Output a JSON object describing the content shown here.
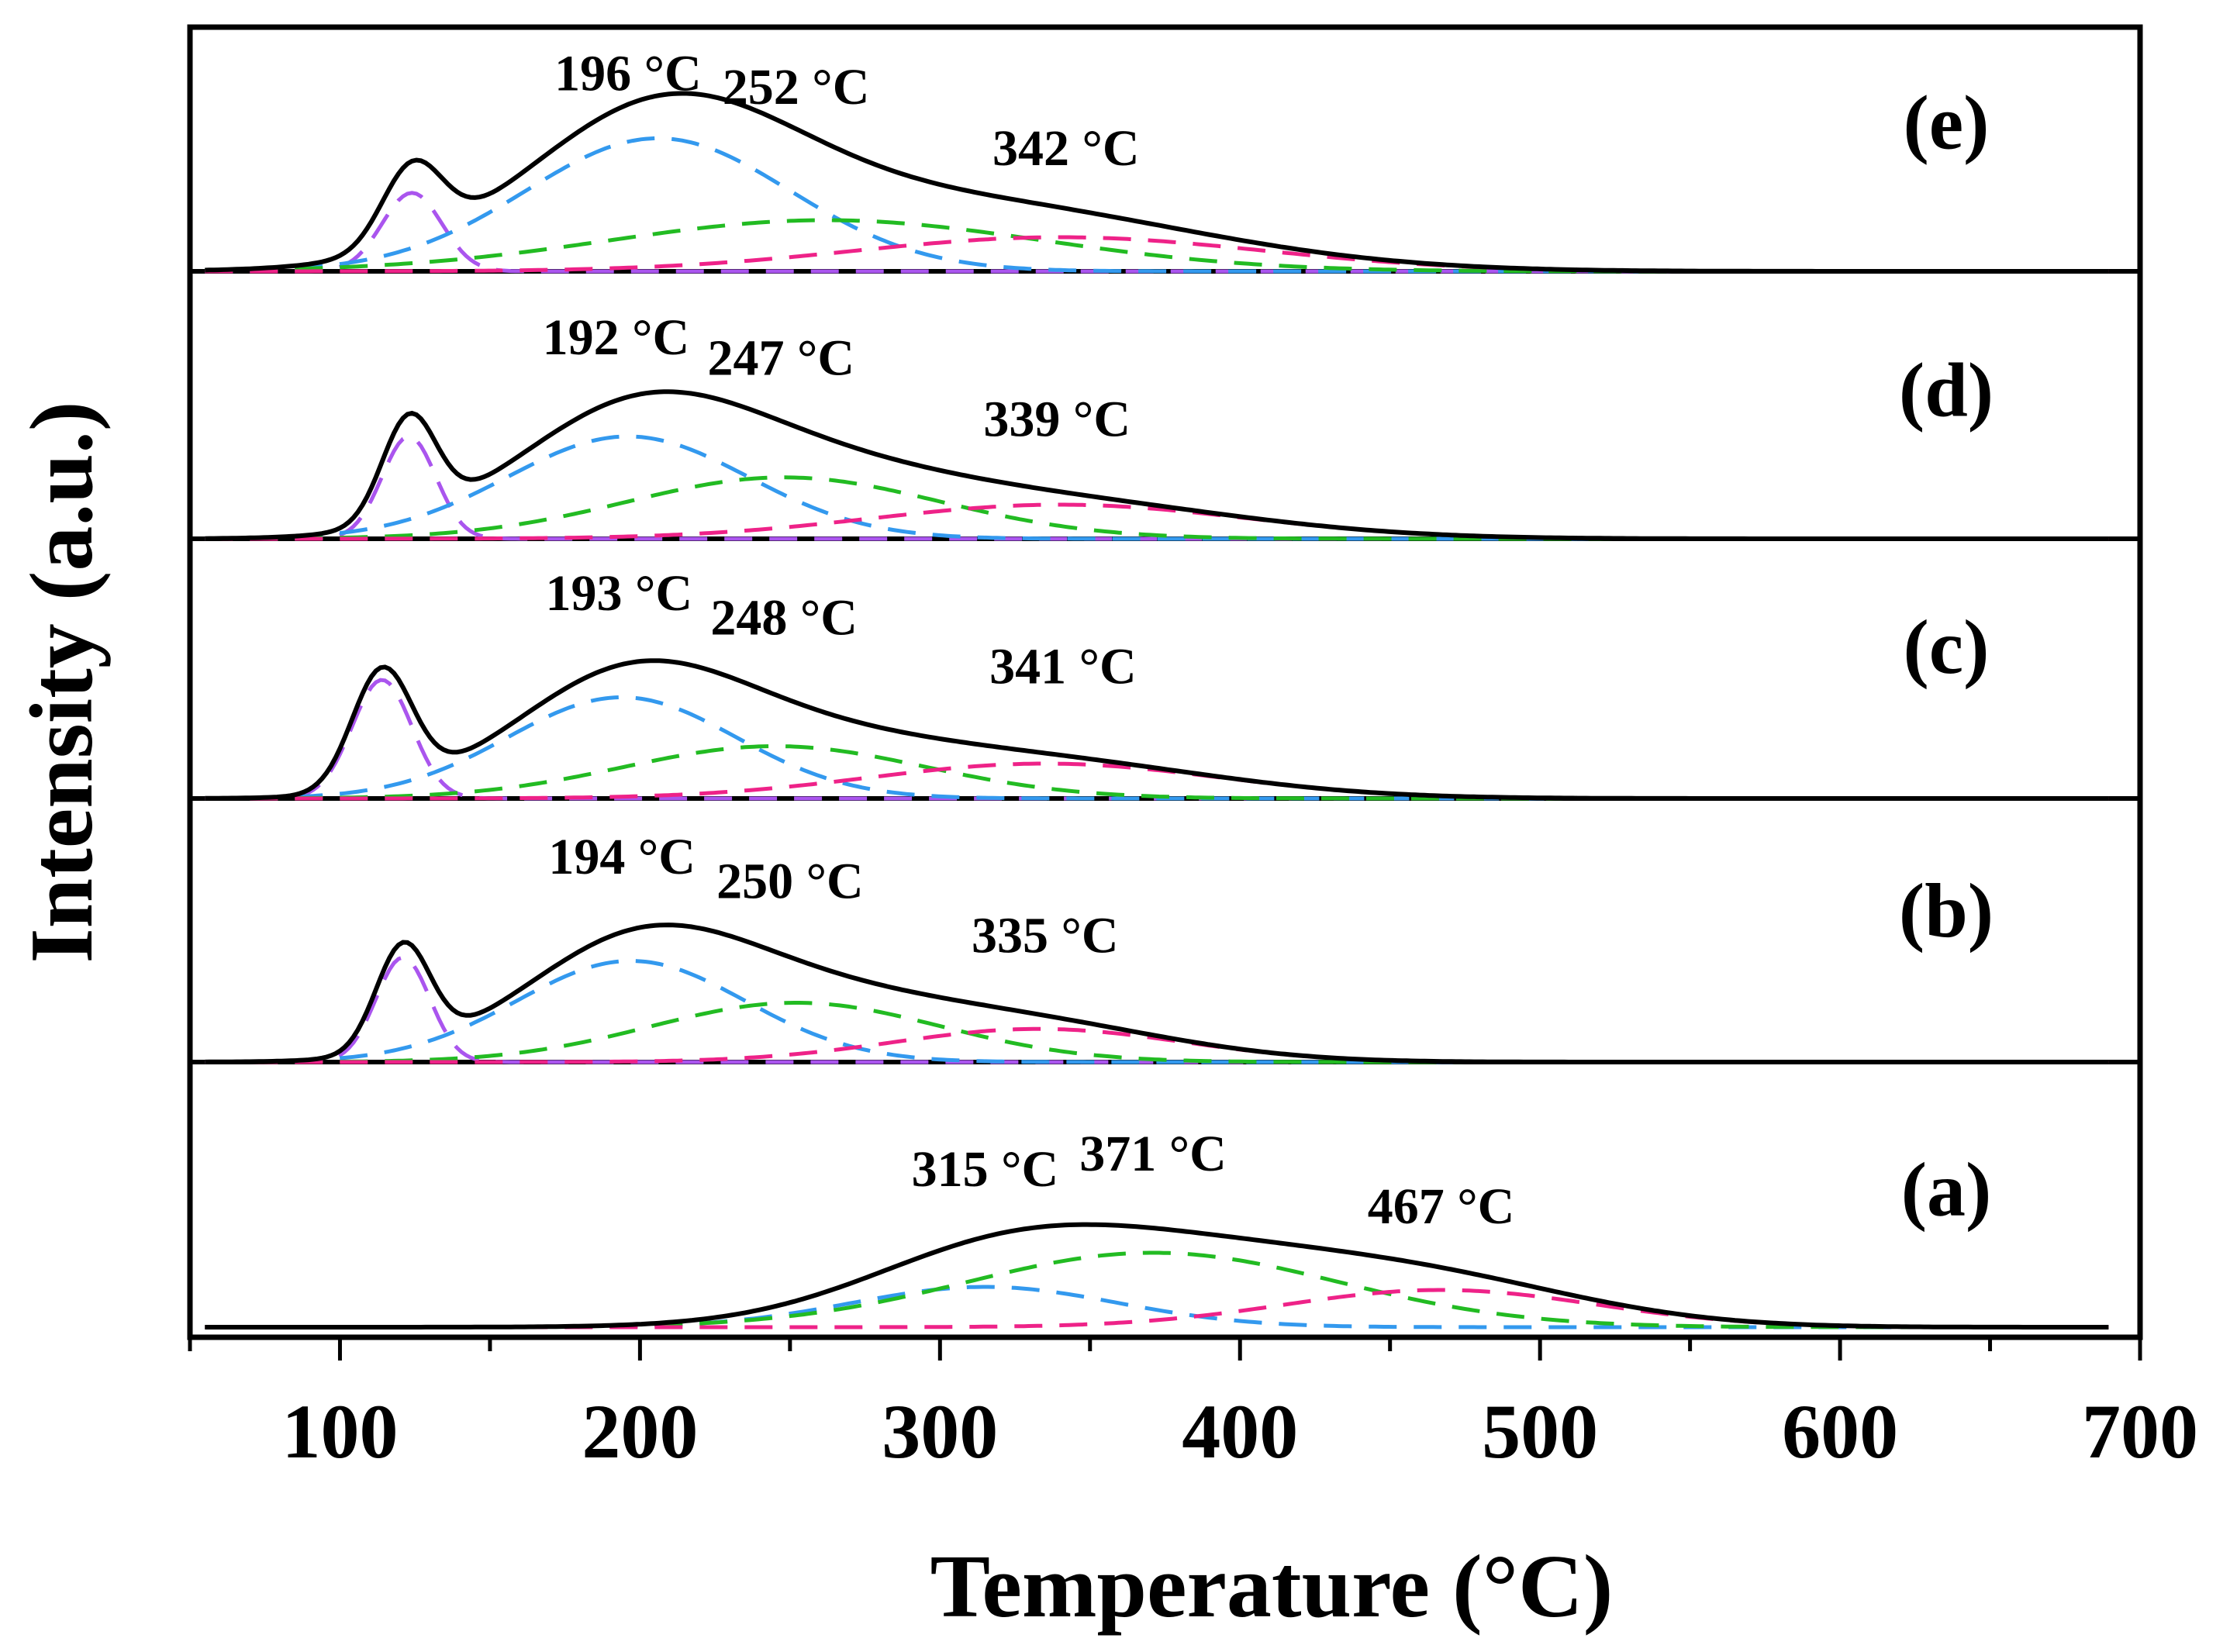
{
  "chart_data": {
    "type": "line",
    "stacked_panels": true,
    "xlabel": "Temperature (°C)",
    "ylabel": "Intensity (a.u.)",
    "xlim": [
      50,
      700
    ],
    "xticks": [
      "100",
      "200",
      "300",
      "400",
      "500",
      "600",
      "700"
    ],
    "xtick_values": [
      100,
      200,
      300,
      400,
      500,
      600,
      700
    ],
    "grid": false,
    "component_colors": {
      "total": "#000000",
      "blue": "#3399ee",
      "green": "#22bb22",
      "pink": "#ee2288",
      "purple": "#aa55ee"
    },
    "panels": [
      {
        "label": "(e)",
        "annotations": [
          {
            "text": "196 °C",
            "x": 196,
            "level": 0.98
          },
          {
            "text": "252 °C",
            "x": 252,
            "level": 0.9
          },
          {
            "text": "342 °C",
            "x": 342,
            "level": 0.54
          }
        ],
        "components": [
          {
            "name": "purple",
            "center": 124,
            "height": 0.46,
            "width": 10
          },
          {
            "name": "blue",
            "center": 206,
            "height": 0.78,
            "width": 44
          },
          {
            "name": "green",
            "center": 262,
            "height": 0.3,
            "width": 72
          },
          {
            "name": "pink",
            "center": 340,
            "height": 0.2,
            "width": 68
          }
        ]
      },
      {
        "label": "(d)",
        "annotations": [
          {
            "text": "192 °C",
            "x": 192,
            "level": 1.0
          },
          {
            "text": "247 °C",
            "x": 247,
            "level": 0.88
          },
          {
            "text": "339 °C",
            "x": 339,
            "level": 0.52
          }
        ],
        "components": [
          {
            "name": "purple",
            "center": 123,
            "height": 0.6,
            "width": 9
          },
          {
            "name": "blue",
            "center": 196,
            "height": 0.6,
            "width": 40
          },
          {
            "name": "green",
            "center": 248,
            "height": 0.36,
            "width": 52
          },
          {
            "name": "pink",
            "center": 340,
            "height": 0.2,
            "width": 62
          }
        ]
      },
      {
        "label": "(c)",
        "annotations": [
          {
            "text": "193 °C",
            "x": 193,
            "level": 1.0
          },
          {
            "text": "248 °C",
            "x": 248,
            "level": 0.86
          },
          {
            "text": "341 °C",
            "x": 341,
            "level": 0.58
          }
        ],
        "components": [
          {
            "name": "purple",
            "center": 114,
            "height": 0.68,
            "width": 10
          },
          {
            "name": "blue",
            "center": 194,
            "height": 0.58,
            "width": 38
          },
          {
            "name": "green",
            "center": 245,
            "height": 0.3,
            "width": 50
          },
          {
            "name": "pink",
            "center": 335,
            "height": 0.2,
            "width": 58
          }
        ]
      },
      {
        "label": "(b)",
        "annotations": [
          {
            "text": "194 °C",
            "x": 194,
            "level": 1.0
          },
          {
            "text": "250 °C",
            "x": 250,
            "level": 0.86
          },
          {
            "text": "335 °C",
            "x": 335,
            "level": 0.55
          }
        ],
        "components": [
          {
            "name": "purple",
            "center": 121,
            "height": 0.6,
            "width": 9
          },
          {
            "name": "blue",
            "center": 197,
            "height": 0.58,
            "width": 38
          },
          {
            "name": "green",
            "center": 252,
            "height": 0.34,
            "width": 48
          },
          {
            "name": "pink",
            "center": 333,
            "height": 0.19,
            "width": 48
          }
        ]
      },
      {
        "label": "(a)",
        "annotations": [
          {
            "text": "315 °C",
            "x": 315,
            "level": 0.82
          },
          {
            "text": "371 °C",
            "x": 371,
            "level": 0.92
          },
          {
            "text": "467 °C",
            "x": 467,
            "level": 0.58
          }
        ],
        "components": [
          {
            "name": "blue",
            "center": 315,
            "height": 0.26,
            "width": 44
          },
          {
            "name": "green",
            "center": 371,
            "height": 0.48,
            "width": 62
          },
          {
            "name": "pink",
            "center": 467,
            "height": 0.24,
            "width": 52
          }
        ]
      }
    ]
  }
}
